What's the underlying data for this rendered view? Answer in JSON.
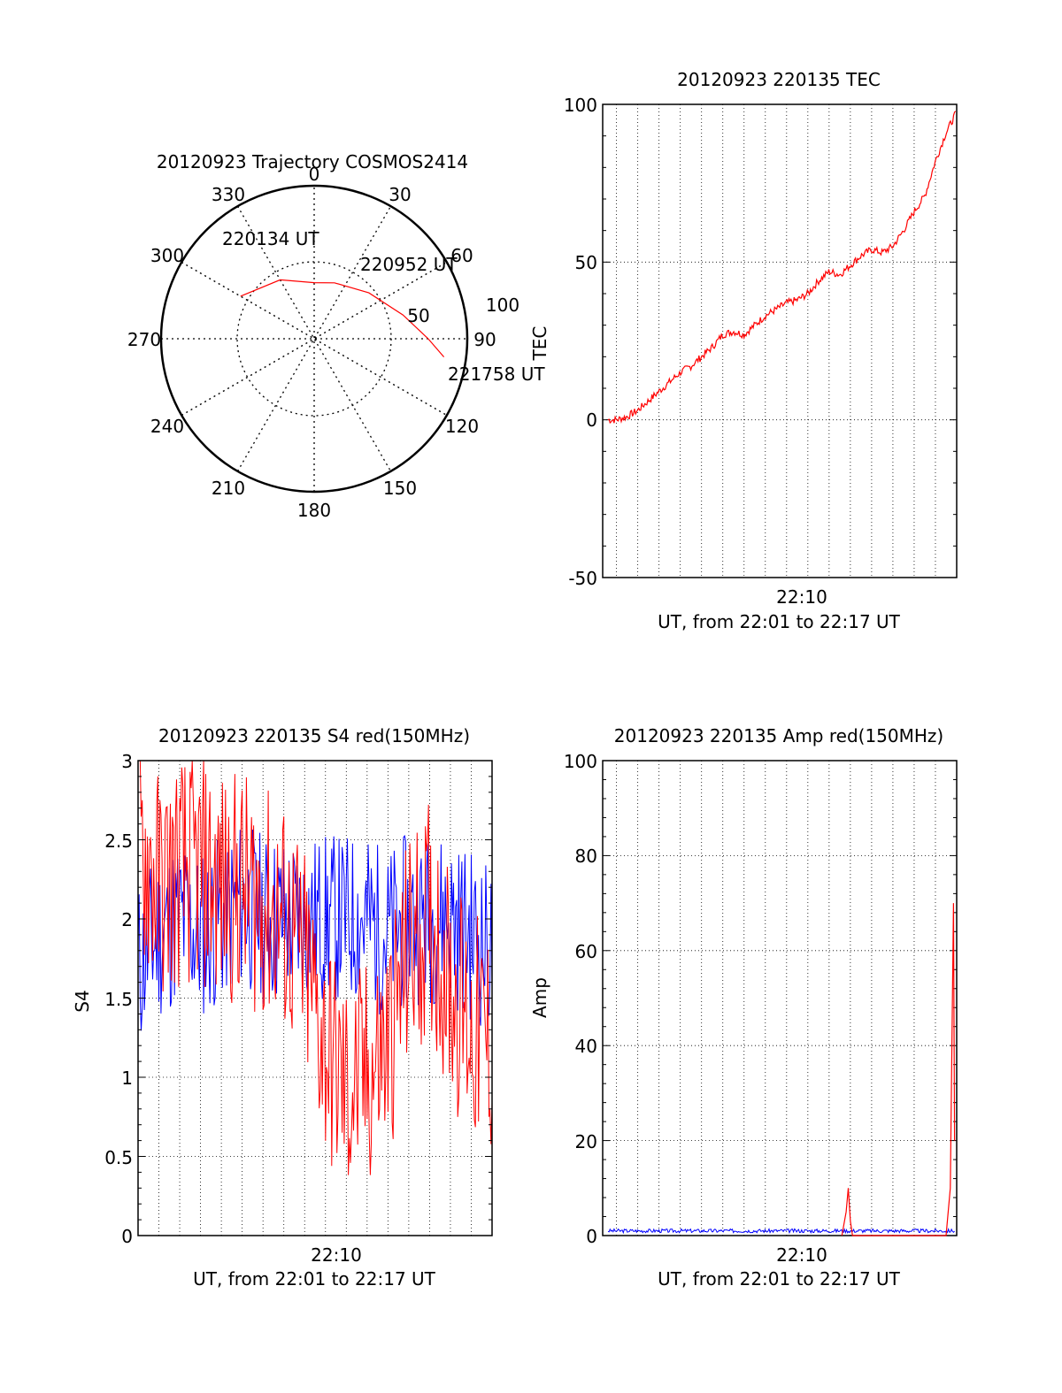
{
  "chart_data": [
    {
      "type": "polar",
      "title": "20120923 Trajectory COSMOS2414",
      "azimuth_labels": [
        "0",
        "30",
        "60",
        "90",
        "120",
        "150",
        "180",
        "210",
        "240",
        "270",
        "300",
        "330"
      ],
      "radial_labels": [
        "50",
        "100"
      ],
      "elevation_range": [
        0,
        90
      ],
      "trajectory": [
        {
          "az": 300,
          "el": 40
        },
        {
          "az": 330,
          "el": 50
        },
        {
          "az": 0,
          "el": 57
        },
        {
          "az": 20,
          "el": 55
        },
        {
          "az": 50,
          "el": 48
        },
        {
          "az": 75,
          "el": 36
        },
        {
          "az": 90,
          "el": 23
        },
        {
          "az": 98,
          "el": 13
        }
      ],
      "annotations": [
        "220134 UT",
        "220952 UT",
        "221758 UT"
      ],
      "color": "#ff0000"
    },
    {
      "type": "line",
      "title": "20120923 220135 TEC",
      "xlabel": "UT, from 22:01 to 22:17 UT",
      "ylabel": "TEC",
      "xtick_labels": [
        "22:10"
      ],
      "ytick_labels": [
        "100",
        "50",
        "0",
        "-50"
      ],
      "ylim": [
        -50,
        100
      ],
      "xlim_minutes": [
        1.35,
        18.0
      ],
      "grid": true,
      "series": [
        {
          "color": "#ff0000",
          "x": [
            1.6,
            2.0,
            2.5,
            3.0,
            3.5,
            4.0,
            4.5,
            5.0,
            5.5,
            6.0,
            6.5,
            7.0,
            7.5,
            8.0,
            8.5,
            9.0,
            9.5,
            10.0,
            10.5,
            11.0,
            11.5,
            12.0,
            12.5,
            13.0,
            13.5,
            14.0,
            14.5,
            15.0,
            15.5,
            16.0,
            16.5,
            17.0,
            17.5,
            17.95
          ],
          "y": [
            0,
            0,
            1,
            3,
            6,
            9,
            12,
            15,
            17,
            20,
            23,
            27,
            28,
            27,
            30,
            33,
            35,
            37,
            38,
            40,
            44,
            47,
            46,
            49,
            52,
            54,
            53,
            55,
            60,
            66,
            71,
            82,
            91,
            97
          ]
        }
      ]
    },
    {
      "type": "line",
      "title": "20120923 220135 S4 red(150MHz)",
      "xlabel": "UT, from 22:01 to 22:17 UT",
      "ylabel": "S4",
      "xtick_labels": [
        "22:10"
      ],
      "ytick_labels": [
        "3",
        "2.5",
        "2",
        "1.5",
        "1",
        "0.5",
        "0"
      ],
      "ylim": [
        0,
        3
      ],
      "xlim_minutes": [
        1.0,
        18.0
      ],
      "grid": true,
      "series": [
        {
          "color": "#0000ff",
          "x": [
            1.0,
            2.0,
            3.0,
            4.0,
            5.0,
            6.0,
            7.0,
            8.0,
            9.0,
            10.0,
            11.0,
            12.0,
            13.0,
            14.0,
            15.0,
            16.0,
            17.0,
            18.0
          ],
          "y": [
            1.7,
            1.9,
            2.0,
            1.9,
            2.0,
            2.1,
            2.0,
            2.0,
            2.0,
            2.0,
            2.0,
            2.0,
            1.9,
            2.0,
            2.0,
            2.0,
            1.9,
            1.8
          ]
        },
        {
          "color": "#ff0000",
          "x": [
            1.0,
            2.0,
            3.0,
            4.0,
            5.0,
            6.0,
            7.0,
            8.0,
            9.0,
            10.0,
            11.0,
            12.0,
            13.0,
            14.0,
            15.0,
            16.0,
            17.0,
            18.0
          ],
          "y": [
            2.5,
            2.2,
            2.3,
            2.3,
            2.2,
            2.2,
            2.1,
            2.0,
            1.7,
            1.2,
            0.9,
            1.0,
            1.2,
            1.8,
            2.0,
            1.6,
            1.3,
            1.2
          ]
        }
      ]
    },
    {
      "type": "line",
      "title": "20120923 220135 Amp red(150MHz)",
      "xlabel": "UT, from 22:01 to 22:17 UT",
      "ylabel": "Amp",
      "xtick_labels": [
        "22:10"
      ],
      "ytick_labels": [
        "100",
        "80",
        "60",
        "40",
        "20",
        "0"
      ],
      "ylim": [
        0,
        100
      ],
      "xlim_minutes": [
        1.35,
        18.0
      ],
      "grid": true,
      "series": [
        {
          "color": "#0000ff",
          "x": [
            1.6,
            4.0,
            7.0,
            10.0,
            13.0,
            16.0,
            17.9
          ],
          "y": [
            1,
            1,
            1,
            1,
            1,
            1,
            1
          ]
        },
        {
          "color": "#ff0000",
          "x": [
            12.6,
            12.8,
            12.9,
            13.0,
            13.1,
            17.5,
            17.7,
            17.8,
            17.85,
            17.9
          ],
          "y": [
            0,
            5,
            10,
            3,
            0,
            0,
            10,
            50,
            70,
            20
          ]
        }
      ]
    }
  ]
}
